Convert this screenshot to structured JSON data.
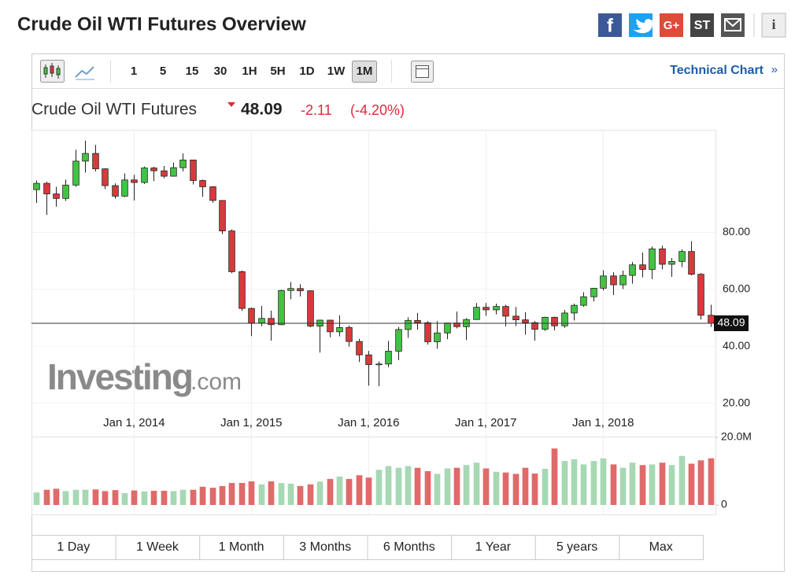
{
  "header": {
    "title": "Crude Oil WTI Futures Overview",
    "share_icons": [
      "f",
      "G+",
      "ST",
      "i"
    ]
  },
  "toolbar": {
    "intervals": [
      "1",
      "5",
      "15",
      "30",
      "1H",
      "5H",
      "1D",
      "1W",
      "1M"
    ],
    "selected": 8,
    "technical_chart": "Technical Chart",
    "chevron": "»"
  },
  "quote": {
    "name": "Crude Oil WTI Futures",
    "price": 48.09,
    "change": -2.11,
    "change_pct": "(-4.20%)"
  },
  "watermark": {
    "brand": "Investing",
    "suffix": ".com"
  },
  "ranges": [
    "1 Day",
    "1 Week",
    "1 Month",
    "3 Months",
    "6 Months",
    "1 Year",
    "5 years",
    "Max"
  ],
  "chart_data": {
    "type": "candlestick",
    "open": [
      95,
      97.2,
      93.5,
      91.9,
      96.6,
      105,
      107.7,
      102.3,
      96.4,
      92.7,
      98.4,
      97.5,
      102.6,
      101.6,
      99.7,
      102.7,
      105.4,
      98.2,
      96,
      91.2,
      80.5,
      66.2,
      53.3,
      48.2,
      49.8,
      47.6,
      59.6,
      60.3,
      59.5,
      47.1,
      49.2,
      45.1,
      46.6,
      41.7,
      37,
      33.6,
      33.8,
      38.3,
      45.9,
      49.1,
      48.3,
      41.6,
      44.7,
      48.2,
      46.9,
      49.4,
      53.7,
      52.8,
      54,
      50.6,
      49.3,
      48.3,
      46,
      50.2,
      47.2,
      51.7,
      54.4,
      57.4,
      60.4,
      64.7,
      61.6,
      64.9,
      68.6,
      67,
      74.2,
      68.8,
      69.8,
      73.3,
      65.3,
      50.9
    ],
    "high": [
      98.2,
      97.8,
      96,
      98.5,
      109,
      112.2,
      110.7,
      102.5,
      97.2,
      100.7,
      100.2,
      103.1,
      103,
      103.3,
      104.5,
      107.7,
      105.2,
      98.5,
      96.2,
      91.2,
      81,
      66.6,
      53.6,
      54.2,
      52.5,
      59.9,
      62.6,
      61.8,
      59.7,
      49.3,
      48.4,
      50.9,
      47.3,
      42.6,
      38.4,
      34.7,
      41.9,
      46.8,
      50.2,
      51.7,
      48.8,
      48.8,
      48.3,
      52.2,
      49.9,
      55.2,
      55.2,
      55,
      54.6,
      53.8,
      52,
      48.9,
      50.4,
      50.4,
      52.8,
      55,
      59,
      60.5,
      66.7,
      66,
      66.6,
      69.6,
      72.9,
      75,
      75.3,
      71,
      74,
      76.9,
      65.7,
      54.6
    ],
    "low": [
      90.3,
      86.1,
      89,
      91,
      96,
      101,
      101.4,
      95.2,
      91.8,
      92.4,
      91.2,
      97,
      98,
      99,
      99.7,
      101.4,
      96.8,
      92.5,
      90.4,
      79.4,
      65.7,
      52.4,
      43.6,
      47.1,
      42,
      47.4,
      56.5,
      57.5,
      46.7,
      37.8,
      43.2,
      43.5,
      39.9,
      34.5,
      26.2,
      26,
      32.7,
      35.2,
      43,
      45.8,
      40.6,
      39.2,
      42.5,
      46.3,
      42.2,
      49.3,
      50.7,
      51.2,
      47,
      47.1,
      44.1,
      42,
      45.4,
      45.6,
      46.5,
      49.1,
      53.9,
      55.8,
      59.6,
      58,
      60.1,
      62,
      64.2,
      63.6,
      67,
      64.4,
      67.8,
      64.9,
      49.4,
      46.8
    ],
    "close": [
      97.2,
      93.5,
      91.9,
      96.6,
      105,
      107.7,
      102.3,
      96.4,
      92.7,
      98.4,
      97.5,
      102.6,
      101.6,
      99.7,
      102.7,
      105.4,
      98.2,
      96,
      91.2,
      80.5,
      66.2,
      53.3,
      48.2,
      49.8,
      47.6,
      59.6,
      60.3,
      59.5,
      47.1,
      49.2,
      45.1,
      46.6,
      41.7,
      37,
      33.6,
      33.8,
      38.3,
      45.9,
      49.1,
      48.3,
      41.6,
      44.7,
      48.2,
      46.9,
      49.4,
      53.7,
      52.8,
      54,
      50.6,
      49.3,
      48.3,
      46,
      50.2,
      47.2,
      51.7,
      54.4,
      57.4,
      60.4,
      64.7,
      61.6,
      64.9,
      68.6,
      67,
      74.2,
      68.8,
      69.8,
      73.3,
      65.3,
      50.9,
      48.09
    ],
    "volume": [
      3700000,
      4500000,
      4800000,
      4100000,
      4500000,
      4500000,
      4600000,
      4100000,
      4400000,
      3500000,
      4300000,
      4000000,
      4200000,
      4200000,
      4100000,
      4500000,
      4500000,
      5400000,
      5100000,
      5600000,
      6500000,
      6500000,
      7000000,
      6100000,
      7000000,
      6500000,
      6300000,
      5600000,
      6100000,
      6900000,
      7700000,
      8400000,
      7700000,
      8800000,
      8100000,
      10400000,
      11500000,
      11000000,
      11500000,
      11000000,
      10000000,
      9200000,
      10800000,
      11000000,
      11800000,
      12500000,
      10800000,
      9800000,
      9600000,
      9200000,
      11000000,
      9300000,
      10700000,
      16700000,
      13000000,
      13500000,
      12000000,
      13000000,
      13800000,
      12000000,
      11000000,
      12500000,
      11800000,
      12000000,
      12500000,
      11800000,
      14500000,
      12200000,
      13200000,
      13800000
    ],
    "xlim": [
      -0.5,
      69.5
    ],
    "xticks": [
      {
        "value": 10,
        "label": "Jan 1, 2014"
      },
      {
        "value": 22,
        "label": "Jan 1, 2015"
      },
      {
        "value": 34,
        "label": "Jan 1, 2016"
      },
      {
        "value": 46,
        "label": "Jan 1, 2017"
      },
      {
        "value": 58,
        "label": "Jan 1, 2018"
      }
    ],
    "ylim": [
      18,
      116
    ],
    "yticks": [
      {
        "value": 20,
        "label": "20.00"
      },
      {
        "value": 40,
        "label": "40.00"
      },
      {
        "value": 60,
        "label": "60.00"
      },
      {
        "value": 80,
        "label": "80.00"
      }
    ],
    "volume_ylim": [
      0,
      20000000
    ],
    "volume_yticks": [
      0,
      {
        "value": 20000000,
        "label": "20.0M"
      }
    ],
    "grid": true,
    "up_color": "#41c441",
    "down_color": "#d8393b",
    "volume_up_color": "#a6d8b4",
    "volume_down_color": "#e06a6a"
  }
}
